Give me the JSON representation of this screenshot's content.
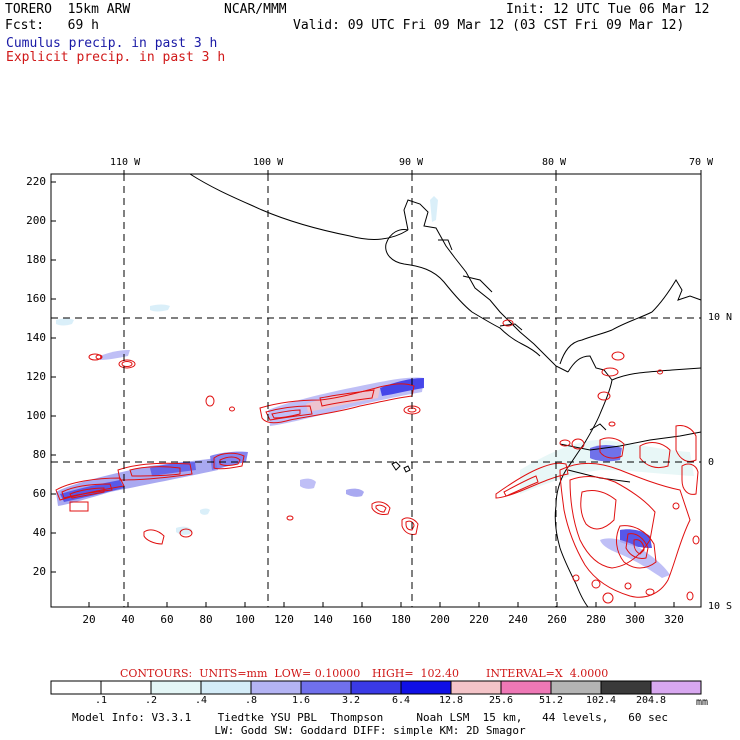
{
  "header": {
    "model_name": "TORERO  15km ARW",
    "center": "NCAR/MMM",
    "init": "Init: 12 UTC Tue 06 Mar 12",
    "fcst": "Fcst:   69 h",
    "valid": "Valid: 09 UTC Fri 09 Mar 12 (03 CST Fri 09 Mar 12)"
  },
  "legend": {
    "cumulus": "Cumulus precip. in past 3 h",
    "explicit": "Explicit precip. in past 3 h"
  },
  "map": {
    "lon_labels": [
      "110 W",
      "100 W",
      "90 W",
      "80 W",
      "70 W"
    ],
    "lat_labels": [
      "10 N",
      "0",
      "10 S"
    ],
    "y_ticks": [
      "220",
      "200",
      "180",
      "160",
      "140",
      "120",
      "100",
      "80",
      "60",
      "40",
      "20"
    ],
    "x_ticks": [
      "20",
      "40",
      "60",
      "80",
      "100",
      "120",
      "140",
      "160",
      "180",
      "200",
      "220",
      "240",
      "260",
      "280",
      "300",
      "320"
    ]
  },
  "contours": {
    "label": "CONTOURS:  UNITS=mm  LOW= 0.10000",
    "high": "HIGH=  102.40",
    "interval": "INTERVAL=X  4.0000"
  },
  "colorbar": {
    "labels": [
      ".1",
      ".2",
      ".4",
      ".8",
      "1.6",
      "3.2",
      "6.4",
      "12.8",
      "25.6",
      "51.2",
      "102.4",
      "204.8"
    ],
    "colors": [
      "#ffffff",
      "#ffffff",
      "#e4f6f6",
      "#d4ecf8",
      "#b4b4f4",
      "#7070ec",
      "#3a3ae6",
      "#1010e6",
      "#f4c4c8",
      "#ee78b6",
      "#b4b4b4",
      "#3a3a3a",
      "#d8a8f0"
    ],
    "unit": "mm"
  },
  "footer": {
    "line1": "Model Info: V3.3.1    Tiedtke YSU PBL  Thompson     Noah LSM  15 km,   44 levels,   60 sec",
    "line2": "LW: Godd SW: Goddard DIFF: simple KM: 2D Smagor"
  }
}
